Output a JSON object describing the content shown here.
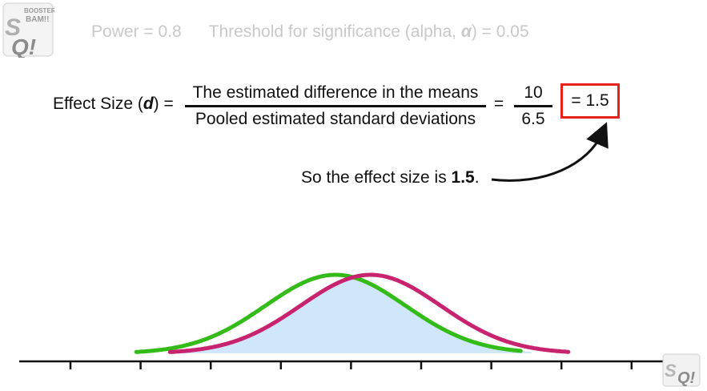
{
  "header": {
    "power": "Power = 0.8",
    "threshold_prefix": "Threshold for significance (alpha, ",
    "alpha_symbol": "α",
    "threshold_suffix": ") = 0.05"
  },
  "equation": {
    "label_prefix": "Effect Size (",
    "label_var": "d",
    "label_suffix": ") =",
    "numerator_text": "The estimated difference in the means",
    "denominator_text": "Pooled estimated standard deviations",
    "equals": "=",
    "numerator_value": "10",
    "denominator_value": "6.5",
    "result": "= 1.5"
  },
  "caption": {
    "prefix": "So the effect size is ",
    "value": "1.5",
    "suffix": "."
  },
  "logo": {
    "top_line": "BOOSTER",
    "mid_line": "BAM!!",
    "main_text": "Q!",
    "s_letter": "S"
  },
  "colors": {
    "green_curve": "#33bb18",
    "magenta_curve": "#c8236e",
    "overlap_fill": "#cfe6fb",
    "highlight_box": "#e8221b",
    "header_text": "#c9c9c9"
  },
  "distributions": {
    "green": {
      "mean": 0,
      "sd": 1
    },
    "magenta": {
      "mean": 0.5,
      "sd": 1
    }
  }
}
